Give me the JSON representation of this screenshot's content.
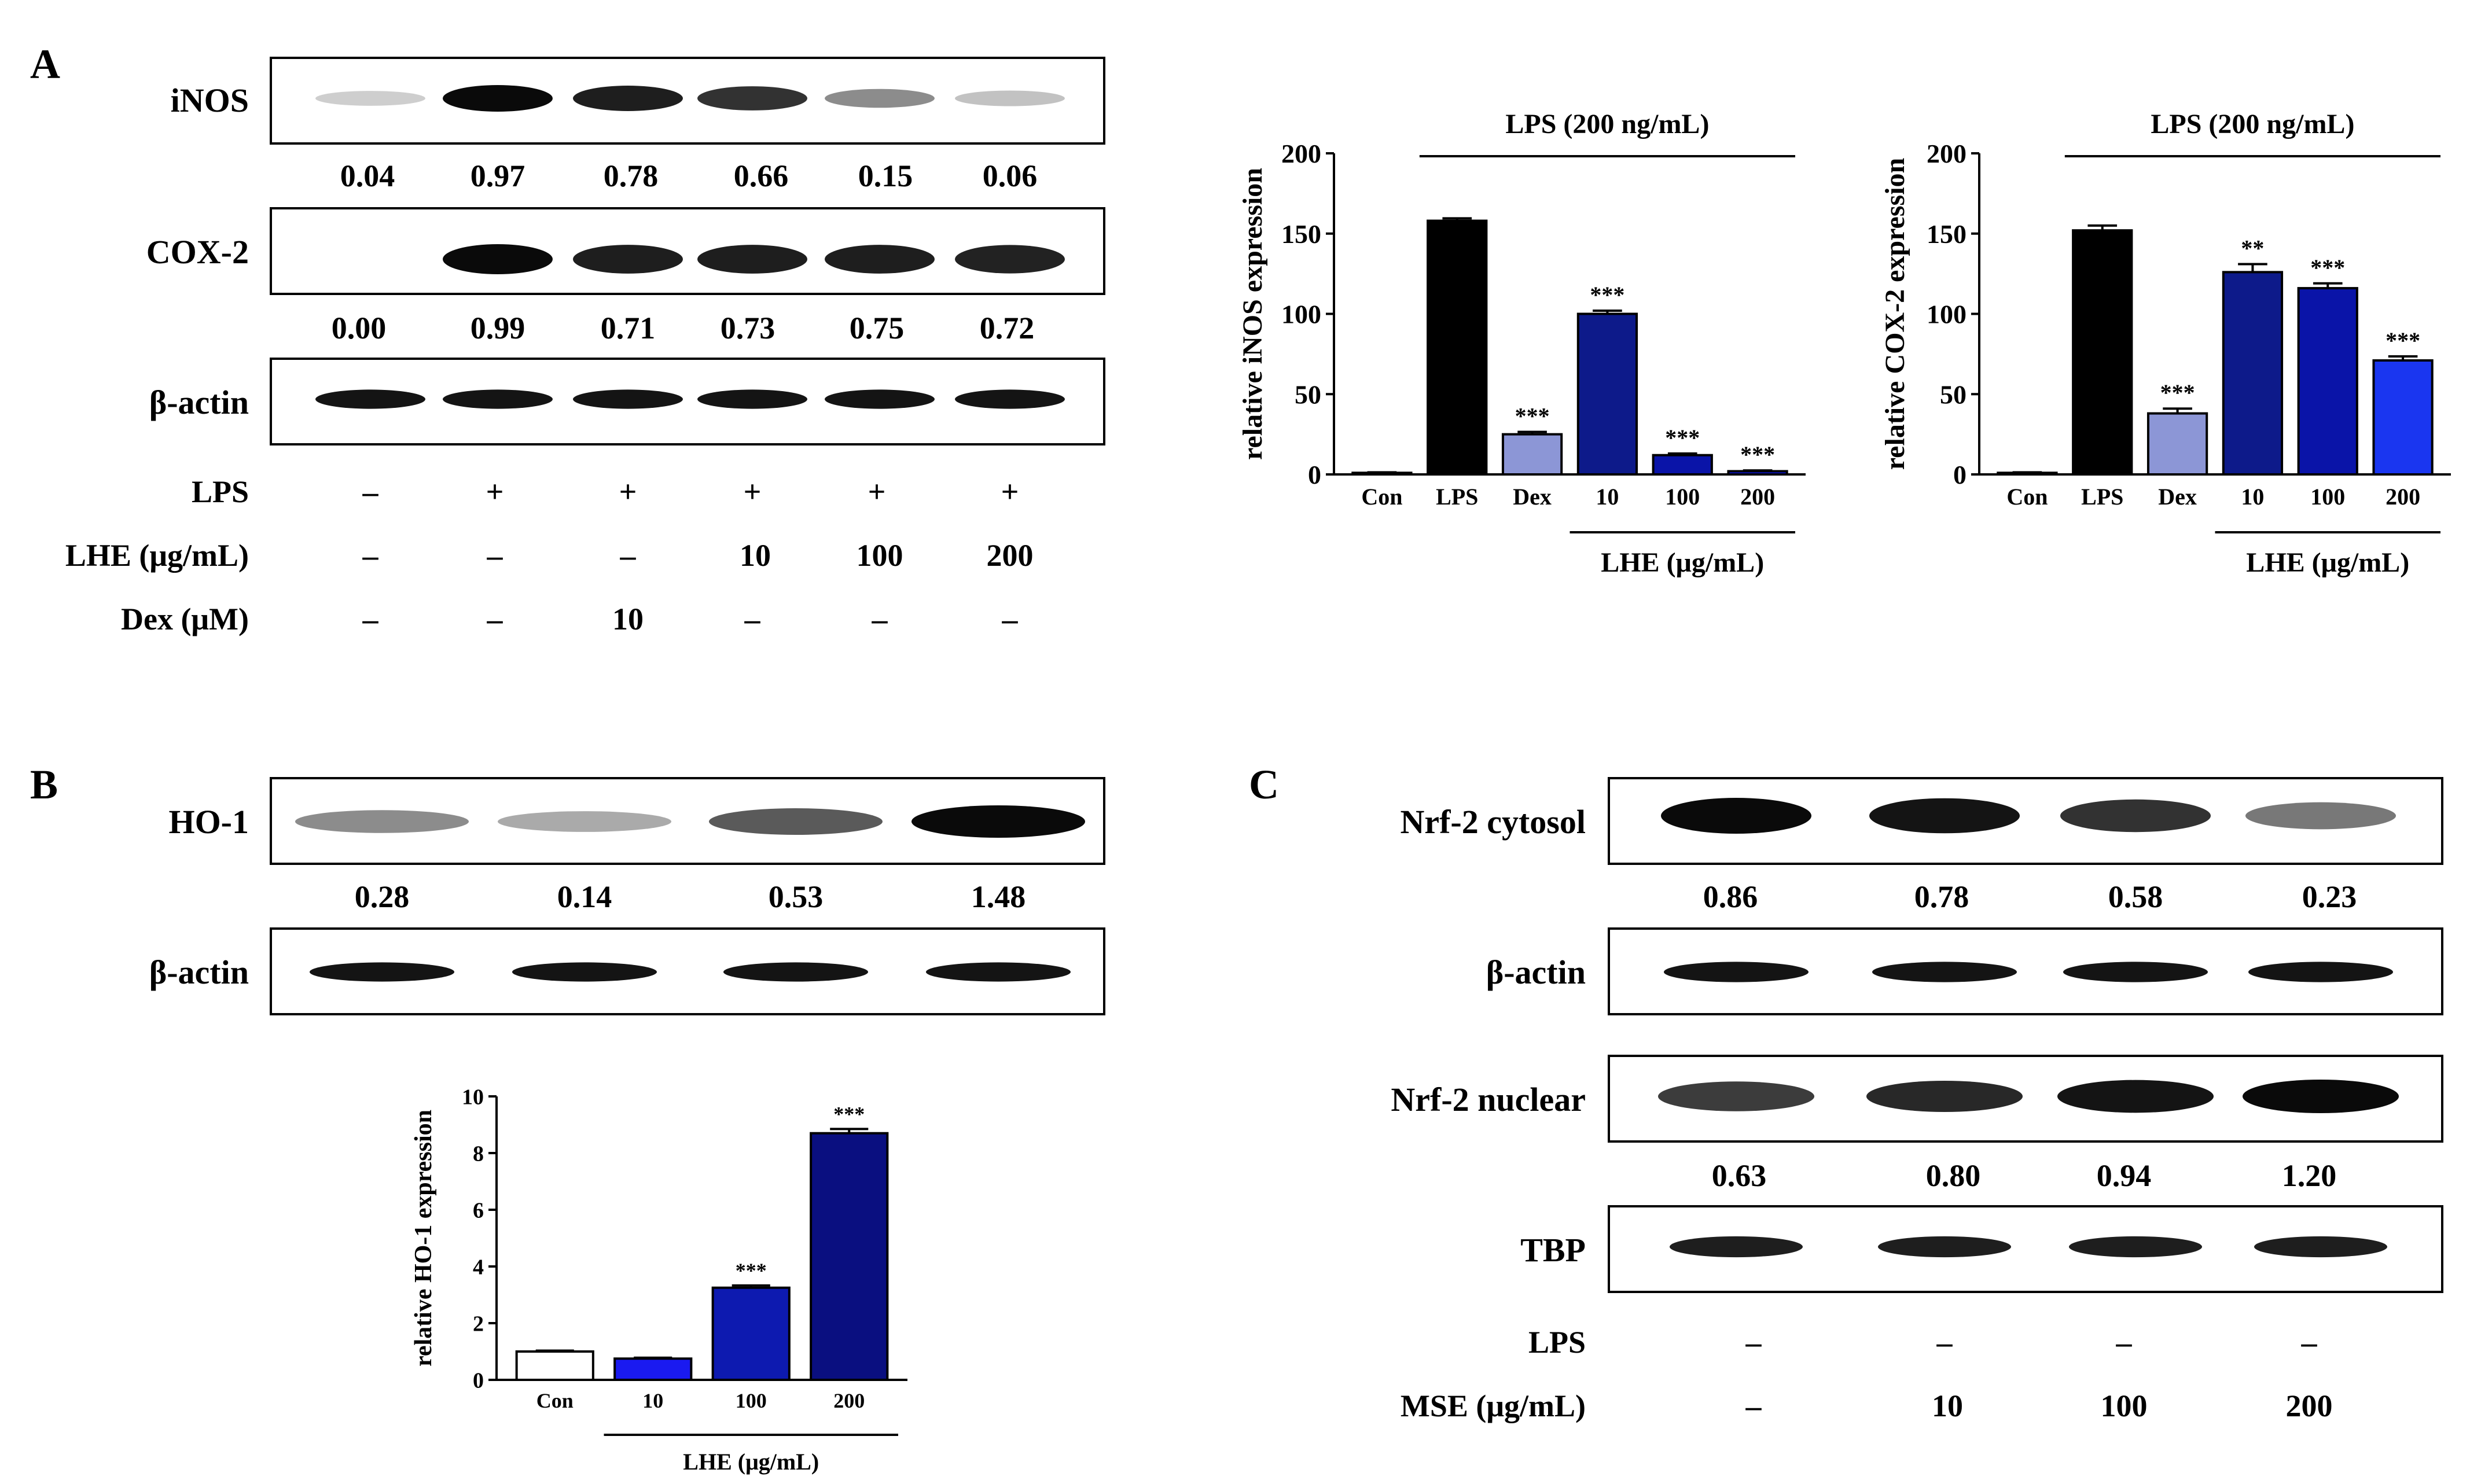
{
  "panels": {
    "A": "A",
    "B": "B",
    "C": "C"
  },
  "panel_a": {
    "blots": [
      {
        "label": "iNOS",
        "values": [
          "0.04",
          "0.97",
          "0.78",
          "0.66",
          "0.15",
          "0.06"
        ],
        "intensity": [
          0.02,
          1.0,
          0.9,
          0.8,
          0.35,
          0.08
        ]
      },
      {
        "label": "COX-2",
        "values": [
          "0.00",
          "0.99",
          "0.71",
          "0.73",
          "0.75",
          "0.72"
        ],
        "intensity": [
          0.0,
          1.0,
          0.9,
          0.9,
          0.9,
          0.88
        ]
      },
      {
        "label": "β-actin",
        "values": [],
        "intensity": [
          0.95,
          0.95,
          0.95,
          0.95,
          0.95,
          0.95
        ]
      }
    ],
    "conditions": [
      {
        "label": "LPS",
        "values": [
          "–",
          "+",
          "+",
          "+",
          "+",
          "+"
        ]
      },
      {
        "label": "LHE (μg/mL)",
        "values": [
          "–",
          "–",
          "–",
          "10",
          "100",
          "200"
        ]
      },
      {
        "label": "Dex (μM)",
        "values": [
          "–",
          "–",
          "10",
          "–",
          "–",
          "–"
        ]
      }
    ]
  },
  "panel_b": {
    "blots": [
      {
        "label": "HO-1",
        "values": [
          "0.28",
          "0.14",
          "0.53",
          "1.48"
        ],
        "intensity": [
          0.35,
          0.2,
          0.6,
          1.0
        ]
      },
      {
        "label": "β-actin",
        "values": [],
        "intensity": [
          0.95,
          0.95,
          0.95,
          0.95
        ]
      }
    ]
  },
  "panel_c": {
    "blots": [
      {
        "label": "Nrf-2 cytosol",
        "values": [
          "0.86",
          "0.78",
          "0.58",
          "0.23"
        ],
        "intensity": [
          1.0,
          0.95,
          0.8,
          0.45
        ]
      },
      {
        "label": "β-actin",
        "values": [],
        "intensity": [
          0.95,
          0.95,
          0.95,
          0.95
        ]
      },
      {
        "label": "Nrf-2 nuclear",
        "values": [
          "0.63",
          "0.80",
          "0.94",
          "1.20"
        ],
        "intensity": [
          0.75,
          0.85,
          0.95,
          1.0
        ]
      },
      {
        "label": "TBP",
        "values": [],
        "intensity": [
          0.9,
          0.9,
          0.9,
          0.9
        ]
      }
    ],
    "conditions": [
      {
        "label": "LPS",
        "values": [
          "–",
          "–",
          "–",
          "–"
        ]
      },
      {
        "label": "MSE (μg/mL)",
        "values": [
          "–",
          "10",
          "100",
          "200"
        ]
      }
    ]
  },
  "chart_data": [
    {
      "id": "inos",
      "type": "bar",
      "title": "",
      "xlabel": "",
      "ylabel": "relative iNOS expression",
      "ylim": [
        0,
        200
      ],
      "yticks": [
        0,
        50,
        100,
        150,
        200
      ],
      "categories": [
        "Con",
        "LPS",
        "Dex",
        "10",
        "100",
        "200"
      ],
      "values": [
        1,
        158,
        25,
        100,
        12,
        2
      ],
      "errors": [
        0.3,
        1.5,
        1.5,
        2.0,
        1.0,
        0.5
      ],
      "colors": [
        "#ffffff",
        "#000000",
        "#8c96d6",
        "#0d1a8a",
        "#0a14a8",
        "#0a14d8"
      ],
      "significance": [
        "",
        "",
        "***",
        "***",
        "***",
        "***"
      ],
      "group_label_top": "LPS (200 ng/mL)",
      "group_label_bottom": "LHE (μg/mL)"
    },
    {
      "id": "cox2",
      "type": "bar",
      "title": "",
      "xlabel": "",
      "ylabel": "relative COX-2 expression",
      "ylim": [
        0,
        200
      ],
      "yticks": [
        0,
        50,
        100,
        150,
        200
      ],
      "categories": [
        "Con",
        "LPS",
        "Dex",
        "10",
        "100",
        "200"
      ],
      "values": [
        1,
        152,
        38,
        126,
        116,
        71
      ],
      "errors": [
        0.3,
        3.0,
        3.0,
        5.0,
        3.0,
        2.5
      ],
      "colors": [
        "#ffffff",
        "#000000",
        "#8c96d6",
        "#0d1a8a",
        "#0a14a8",
        "#1a36f0"
      ],
      "significance": [
        "",
        "",
        "***",
        "**",
        "***",
        "***"
      ],
      "group_label_top": "LPS (200 ng/mL)",
      "group_label_bottom": "LHE (μg/mL)"
    },
    {
      "id": "ho1",
      "type": "bar",
      "title": "",
      "xlabel": "",
      "ylabel": "relative HO-1 expression",
      "ylim": [
        0,
        10
      ],
      "yticks": [
        0,
        2,
        4,
        6,
        8,
        10
      ],
      "categories": [
        "Con",
        "10",
        "100",
        "200"
      ],
      "values": [
        1.0,
        0.75,
        3.25,
        8.7
      ],
      "errors": [
        0.03,
        0.03,
        0.08,
        0.15
      ],
      "colors": [
        "#ffffff",
        "#1a1af0",
        "#0d1ab0",
        "#0a0f80"
      ],
      "significance": [
        "",
        "",
        "***",
        "***"
      ],
      "group_label_top": "",
      "group_label_bottom": "LHE (μg/mL)"
    }
  ]
}
